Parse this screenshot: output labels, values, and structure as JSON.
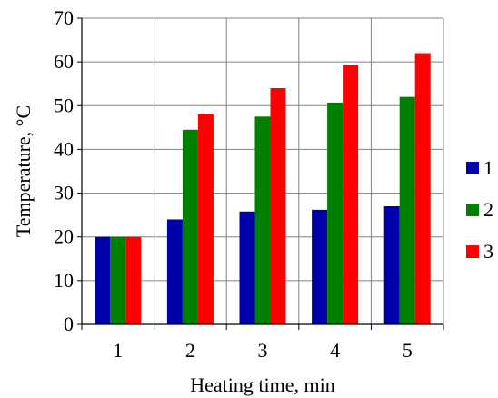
{
  "chart_data": {
    "type": "bar",
    "title": "",
    "xlabel": "Heating time, min",
    "ylabel": "Temperature, °C",
    "categories": [
      "1",
      "2",
      "3",
      "4",
      "5"
    ],
    "series": [
      {
        "name": "1",
        "color": "#0000aa",
        "values": [
          20,
          24,
          25.8,
          26.2,
          27
        ]
      },
      {
        "name": "2",
        "color": "#008000",
        "values": [
          20,
          44.5,
          47.5,
          50.7,
          52
        ]
      },
      {
        "name": "3",
        "color": "#ff0000",
        "values": [
          20,
          48,
          54,
          59.3,
          62
        ]
      }
    ],
    "ylim": [
      0,
      70
    ],
    "yticks": [
      "0",
      "10",
      "20",
      "30",
      "40",
      "50",
      "60",
      "70"
    ],
    "grid": true,
    "legend_position": "right"
  }
}
